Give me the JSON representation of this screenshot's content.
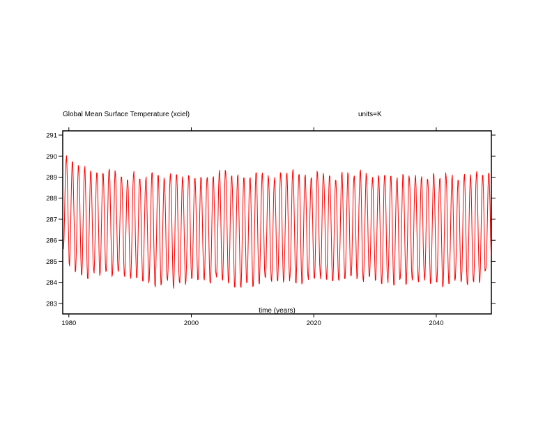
{
  "chart_data": {
    "type": "line",
    "title": "Global Mean Surface Temperature (xciel)",
    "units_label": "units=K",
    "xlabel": "time (years)",
    "ylabel": "",
    "xlim": [
      1979.0,
      2049.0
    ],
    "ylim": [
      282.5,
      291.2
    ],
    "x_ticks": [
      1980,
      2000,
      2020,
      2040
    ],
    "x_tick_labels": [
      "1980",
      "2000",
      "2020",
      "2040"
    ],
    "y_ticks": [
      283,
      284,
      285,
      286,
      287,
      288,
      289,
      290,
      291
    ],
    "y_tick_labels": [
      "283",
      "284",
      "285",
      "286",
      "287",
      "288",
      "289",
      "290",
      "291"
    ],
    "grid": false,
    "legend": "none",
    "series": [
      {
        "color": "#ff0000",
        "sampling": "monthly",
        "start_year": 1979,
        "annual_max": [
          290.0,
          289.8,
          289.6,
          289.5,
          289.4,
          289.3,
          289.2,
          289.5,
          289.3,
          289.2,
          289.0,
          289.3,
          289.1,
          289.0,
          289.2,
          289.1,
          289.0,
          289.2,
          289.3,
          289.0,
          289.2,
          289.1,
          289.0,
          289.1,
          289.0,
          289.3,
          289.4,
          289.2,
          289.1,
          289.0,
          289.1,
          289.3,
          289.2,
          289.1,
          289.0,
          289.2,
          289.3,
          289.4,
          289.3,
          289.2,
          289.1,
          289.3,
          289.2,
          289.1,
          289.0,
          289.3,
          289.2,
          289.1,
          289.4,
          289.2,
          289.0,
          289.1,
          289.2,
          289.1,
          289.0,
          289.2,
          289.1,
          289.1,
          289.0,
          289.0,
          289.2,
          289.1,
          289.2,
          289.1,
          289.0,
          289.2,
          289.1,
          289.3,
          289.1,
          289.2
        ],
        "annual_min": [
          285.5,
          284.8,
          284.5,
          284.3,
          284.1,
          284.4,
          284.3,
          284.5,
          284.2,
          284.4,
          284.3,
          284.2,
          284.1,
          284.0,
          283.9,
          283.8,
          283.9,
          284.0,
          283.7,
          284.0,
          283.9,
          284.0,
          284.1,
          284.0,
          283.9,
          284.2,
          284.1,
          284.0,
          283.8,
          283.7,
          284.0,
          283.8,
          283.9,
          284.1,
          284.0,
          283.9,
          284.0,
          284.1,
          284.0,
          283.9,
          284.1,
          284.0,
          284.2,
          284.1,
          284.0,
          284.1,
          284.0,
          284.2,
          284.1,
          284.0,
          284.2,
          284.1,
          283.9,
          284.0,
          283.8,
          284.0,
          283.9,
          284.1,
          284.0,
          284.1,
          283.9,
          284.0,
          283.7,
          283.8,
          284.0,
          283.9,
          283.8,
          284.0,
          283.9,
          284.5
        ]
      }
    ]
  }
}
